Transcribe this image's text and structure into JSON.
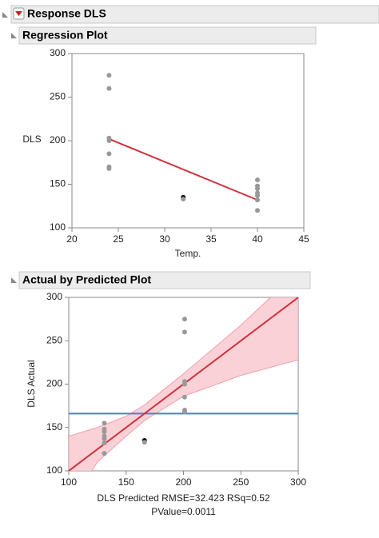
{
  "header": "Response DLS",
  "chart_data": [
    {
      "type": "scatter",
      "title": "Regression Plot",
      "x_label": "Temp.",
      "y_label": "DLS",
      "xlim": [
        20,
        45
      ],
      "xticks": [
        20,
        25,
        30,
        35,
        40,
        45
      ],
      "ylim": [
        100,
        300
      ],
      "yticks": [
        100,
        150,
        200,
        250,
        300
      ],
      "x": [
        24,
        24,
        24,
        24,
        24,
        24,
        24,
        32,
        32,
        40,
        40,
        40,
        40,
        40,
        40,
        40
      ],
      "y": [
        275,
        260,
        203,
        200,
        185,
        170,
        168,
        135,
        133,
        155,
        148,
        145,
        140,
        137,
        132,
        120
      ],
      "colors": [
        "#999999",
        "#999999",
        "#999999",
        "#999999",
        "#999999",
        "#999999",
        "#999999",
        "#000000",
        "#999999",
        "#999999",
        "#999999",
        "#999999",
        "#999999",
        "#999999",
        "#999999",
        "#999999"
      ],
      "fit": {
        "x": [
          24,
          40
        ],
        "y": [
          202,
          132
        ],
        "color": "#d0313d"
      }
    },
    {
      "type": "scatter",
      "title": "Actual by Predicted Plot",
      "x_label": [
        "DLS Predicted RMSE=32.423 RSq=0.52",
        "PValue=0.0011"
      ],
      "y_label": "DLS Actual",
      "xlim": [
        100,
        300
      ],
      "xticks": [
        100,
        150,
        200,
        250,
        300
      ],
      "ylim": [
        100,
        300
      ],
      "yticks": [
        100,
        150,
        200,
        250,
        300
      ],
      "x": [
        201,
        201,
        201,
        201,
        201,
        201,
        201,
        166,
        166,
        131,
        131,
        131,
        131,
        131,
        131,
        131
      ],
      "y": [
        275,
        260,
        203,
        200,
        185,
        170,
        168,
        135,
        133,
        155,
        148,
        145,
        140,
        137,
        132,
        120
      ],
      "colors": [
        "#999999",
        "#999999",
        "#999999",
        "#999999",
        "#999999",
        "#999999",
        "#999999",
        "#000000",
        "#999999",
        "#999999",
        "#999999",
        "#999999",
        "#999999",
        "#999999",
        "#999999",
        "#999999"
      ],
      "fit": {
        "x": [
          100,
          300
        ],
        "y": [
          100,
          300
        ],
        "color": "#d0313d"
      },
      "mean": 166,
      "mean_color": "#4a7fd8",
      "band": {
        "x": [
          100,
          125,
          150,
          166,
          200,
          250,
          300
        ],
        "upper": [
          140,
          150,
          163,
          176,
          212,
          268,
          330
        ],
        "lower": [
          60,
          110,
          140,
          158,
          186,
          210,
          228
        ],
        "color": "#f7c6cd"
      }
    }
  ]
}
